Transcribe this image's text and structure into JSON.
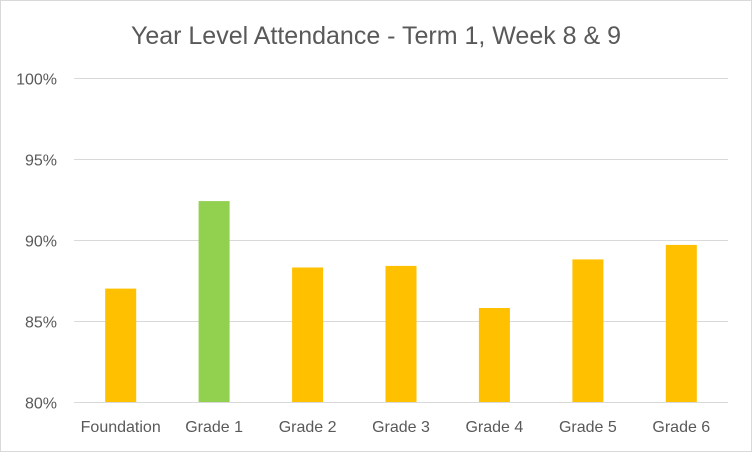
{
  "chart_data": {
    "type": "bar",
    "title": "Year Level Attendance - Term 1, Week 8 & 9",
    "xlabel": "",
    "ylabel": "",
    "categories": [
      "Foundation",
      "Grade 1",
      "Grade 2",
      "Grade 3",
      "Grade 4",
      "Grade 5",
      "Grade 6"
    ],
    "values": [
      87.0,
      92.4,
      88.3,
      88.4,
      85.8,
      88.8,
      89.7
    ],
    "bar_colors": [
      "#ffc000",
      "#92d050",
      "#ffc000",
      "#ffc000",
      "#ffc000",
      "#ffc000",
      "#ffc000"
    ],
    "ylim": [
      80,
      100
    ],
    "yticks": [
      80,
      85,
      90,
      95,
      100
    ],
    "ytick_labels": [
      "80%",
      "85%",
      "90%",
      "95%",
      "100%"
    ],
    "grid": true,
    "legend": "none"
  }
}
